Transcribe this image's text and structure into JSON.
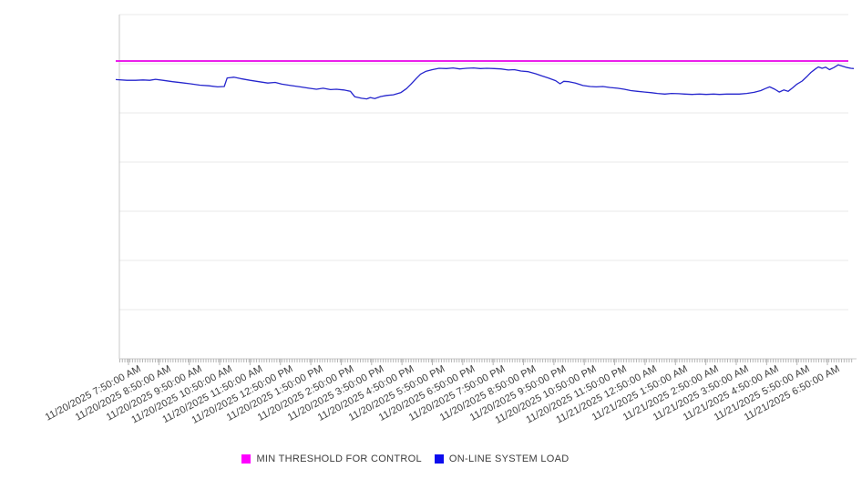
{
  "legend": {
    "items": [
      {
        "label": "MIN THRESHOLD FOR CONTROL",
        "swatch_color": "#ff00ff"
      },
      {
        "label": "ON-LINE SYSTEM LOAD",
        "swatch_color": "#0d0dee"
      }
    ],
    "position": "bottom-center"
  },
  "colors": {
    "threshold_line": "#e800e8",
    "load_line": "#2525cd",
    "grid": "#e9e9e9",
    "axis": "#c9c9c9",
    "tick": "#b5b5b5",
    "label_text": "#3c3c3c",
    "background": "#ffffff"
  },
  "chart_data": {
    "type": "line",
    "title": "",
    "xlabel": "",
    "ylabel": "",
    "grid": true,
    "legend_position": "bottom",
    "x_axis": {
      "tick_labels": [
        "11/20/2025 7:50:00 AM",
        "11/20/2025 8:50:00 AM",
        "11/20/2025 9:50:00 AM",
        "11/20/2025 10:50:00 AM",
        "11/20/2025 11:50:00 AM",
        "11/20/2025 12:50:00 PM",
        "11/20/2025 1:50:00 PM",
        "11/20/2025 2:50:00 PM",
        "11/20/2025 3:50:00 PM",
        "11/20/2025 4:50:00 PM",
        "11/20/2025 5:50:00 PM",
        "11/20/2025 6:50:00 PM",
        "11/20/2025 7:50:00 PM",
        "11/20/2025 8:50:00 PM",
        "11/20/2025 9:50:00 PM",
        "11/20/2025 10:50:00 PM",
        "11/20/2025 11:50:00 PM",
        "11/21/2025 12:50:00 AM",
        "11/21/2025 1:50:00 AM",
        "11/21/2025 2:50:00 AM",
        "11/21/2025 3:50:00 AM",
        "11/21/2025 4:50:00 AM",
        "11/21/2025 5:50:00 AM",
        "11/21/2025 6:50:00 AM"
      ],
      "minor_ticks_per_interval": 12,
      "label_rotation_deg": -28
    },
    "y_axis": {
      "labels_visible": false,
      "assumed_range": [
        0,
        100
      ],
      "gridline_intervals": 7
    },
    "series": [
      {
        "name": "MIN THRESHOLD FOR CONTROL",
        "style": "horizontal-threshold",
        "color": "#e800e8",
        "value": 86.5
      },
      {
        "name": "ON-LINE SYSTEM LOAD",
        "style": "line",
        "color": "#2525cd",
        "points": [
          [
            0.0,
            81.1
          ],
          [
            0.015,
            80.9
          ],
          [
            0.027,
            80.9
          ],
          [
            0.037,
            81.0
          ],
          [
            0.046,
            80.9
          ],
          [
            0.054,
            81.2
          ],
          [
            0.064,
            80.9
          ],
          [
            0.077,
            80.5
          ],
          [
            0.089,
            80.2
          ],
          [
            0.101,
            79.9
          ],
          [
            0.114,
            79.5
          ],
          [
            0.126,
            79.3
          ],
          [
            0.138,
            79.0
          ],
          [
            0.147,
            79.1
          ],
          [
            0.151,
            81.6
          ],
          [
            0.16,
            81.8
          ],
          [
            0.169,
            81.4
          ],
          [
            0.182,
            80.9
          ],
          [
            0.194,
            80.5
          ],
          [
            0.206,
            80.1
          ],
          [
            0.216,
            80.3
          ],
          [
            0.225,
            79.8
          ],
          [
            0.237,
            79.4
          ],
          [
            0.25,
            79.0
          ],
          [
            0.262,
            78.6
          ],
          [
            0.272,
            78.3
          ],
          [
            0.281,
            78.6
          ],
          [
            0.291,
            78.2
          ],
          [
            0.299,
            78.3
          ],
          [
            0.309,
            78.1
          ],
          [
            0.318,
            77.7
          ],
          [
            0.324,
            76.1
          ],
          [
            0.333,
            75.7
          ],
          [
            0.34,
            75.5
          ],
          [
            0.345,
            75.9
          ],
          [
            0.351,
            75.6
          ],
          [
            0.359,
            76.2
          ],
          [
            0.367,
            76.5
          ],
          [
            0.376,
            76.7
          ],
          [
            0.386,
            77.3
          ],
          [
            0.394,
            78.5
          ],
          [
            0.4,
            79.8
          ],
          [
            0.407,
            81.4
          ],
          [
            0.413,
            82.7
          ],
          [
            0.42,
            83.5
          ],
          [
            0.429,
            84.0
          ],
          [
            0.438,
            84.4
          ],
          [
            0.448,
            84.3
          ],
          [
            0.457,
            84.5
          ],
          [
            0.466,
            84.2
          ],
          [
            0.475,
            84.4
          ],
          [
            0.485,
            84.5
          ],
          [
            0.494,
            84.3
          ],
          [
            0.503,
            84.4
          ],
          [
            0.513,
            84.3
          ],
          [
            0.522,
            84.2
          ],
          [
            0.532,
            83.9
          ],
          [
            0.54,
            84.0
          ],
          [
            0.549,
            83.6
          ],
          [
            0.559,
            83.4
          ],
          [
            0.569,
            82.8
          ],
          [
            0.577,
            82.2
          ],
          [
            0.586,
            81.6
          ],
          [
            0.596,
            80.8
          ],
          [
            0.602,
            79.9
          ],
          [
            0.607,
            80.6
          ],
          [
            0.614,
            80.5
          ],
          [
            0.623,
            80.1
          ],
          [
            0.633,
            79.4
          ],
          [
            0.643,
            79.1
          ],
          [
            0.651,
            79.0
          ],
          [
            0.66,
            79.1
          ],
          [
            0.67,
            78.8
          ],
          [
            0.68,
            78.6
          ],
          [
            0.689,
            78.3
          ],
          [
            0.698,
            77.9
          ],
          [
            0.707,
            77.7
          ],
          [
            0.717,
            77.5
          ],
          [
            0.726,
            77.3
          ],
          [
            0.734,
            77.1
          ],
          [
            0.744,
            76.9
          ],
          [
            0.753,
            77.1
          ],
          [
            0.763,
            77.0
          ],
          [
            0.771,
            76.9
          ],
          [
            0.781,
            76.8
          ],
          [
            0.791,
            76.9
          ],
          [
            0.8,
            76.8
          ],
          [
            0.81,
            76.9
          ],
          [
            0.818,
            76.8
          ],
          [
            0.828,
            76.9
          ],
          [
            0.837,
            76.9
          ],
          [
            0.845,
            76.9
          ],
          [
            0.855,
            77.1
          ],
          [
            0.865,
            77.4
          ],
          [
            0.874,
            77.9
          ],
          [
            0.88,
            78.5
          ],
          [
            0.886,
            79.0
          ],
          [
            0.893,
            78.3
          ],
          [
            0.899,
            77.5
          ],
          [
            0.905,
            78.1
          ],
          [
            0.911,
            77.7
          ],
          [
            0.917,
            78.7
          ],
          [
            0.923,
            79.8
          ],
          [
            0.93,
            80.7
          ],
          [
            0.936,
            81.9
          ],
          [
            0.942,
            83.2
          ],
          [
            0.948,
            84.2
          ],
          [
            0.952,
            84.8
          ],
          [
            0.957,
            84.4
          ],
          [
            0.962,
            84.7
          ],
          [
            0.967,
            84.0
          ],
          [
            0.973,
            84.6
          ],
          [
            0.979,
            85.4
          ],
          [
            0.985,
            85.0
          ],
          [
            0.991,
            84.6
          ],
          [
            0.996,
            84.4
          ],
          [
            1.0,
            84.3
          ]
        ]
      }
    ]
  }
}
